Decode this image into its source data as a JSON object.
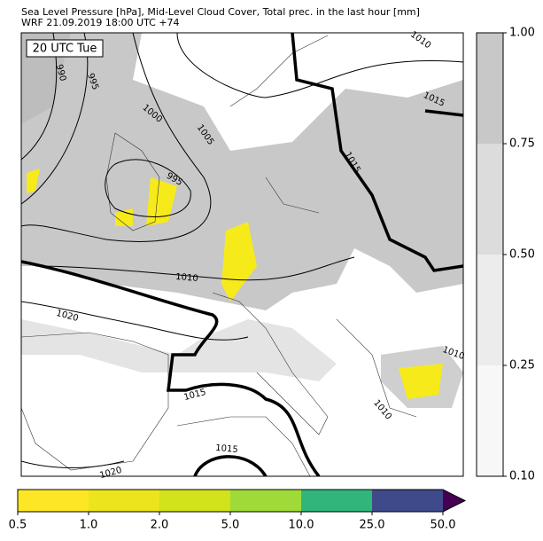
{
  "header": {
    "title": "Sea Level Pressure [hPa], Mid-Level Cloud Cover, Total prec. in the last hour [mm]",
    "subtitle": "WRF 21.09.2019 18:00 UTC +74"
  },
  "map": {
    "time_label": "20 UTC Tue",
    "contour_labels": [
      "990",
      "995",
      "1000",
      "1005",
      "995",
      "1010",
      "1020",
      "1015",
      "1015",
      "1020",
      "1015",
      "1015",
      "1010",
      "1010",
      "1010"
    ]
  },
  "cloud_colorbar": {
    "levels": [
      {
        "value": 0.1,
        "label": "0.10"
      },
      {
        "value": 0.25,
        "label": "0.25"
      },
      {
        "value": 0.5,
        "label": "0.50"
      },
      {
        "value": 0.75,
        "label": "0.75"
      },
      {
        "value": 1,
        "label": "1.00"
      }
    ],
    "colors": [
      "#f7f7f7",
      "#ececec",
      "#dcdcdc",
      "#c8c8c8"
    ]
  },
  "precip_colorbar": {
    "levels": [
      {
        "value": 0.5,
        "label": "0.5"
      },
      {
        "value": 1,
        "label": "1.0"
      },
      {
        "value": 2,
        "label": "2.0"
      },
      {
        "value": 5,
        "label": "5.0"
      },
      {
        "value": 10,
        "label": "10.0"
      },
      {
        "value": 25,
        "label": "25.0"
      },
      {
        "value": 50,
        "label": "50.0"
      }
    ],
    "colors": [
      "#fde725",
      "#ece51b",
      "#d2e21b",
      "#a0da39",
      "#31b57b",
      "#3f4a8a",
      "#440154"
    ]
  }
}
